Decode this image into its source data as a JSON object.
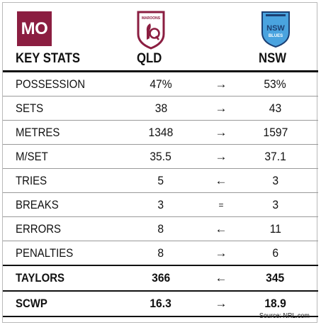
{
  "badge": "MO",
  "header": {
    "key_label": "KEY STATS",
    "team_left": "QLD",
    "team_right": "NSW"
  },
  "logos": {
    "qld_text": "MAROONS",
    "nsw_line1": "NSW",
    "nsw_line2": "BLUES"
  },
  "rows": [
    {
      "label": "POSSESSION",
      "qld": "47%",
      "arrow": "→",
      "nsw": "53%"
    },
    {
      "label": "SETS",
      "qld": "38",
      "arrow": "→",
      "nsw": "43"
    },
    {
      "label": "METRES",
      "qld": "1348",
      "arrow": "→",
      "nsw": "1597"
    },
    {
      "label": "M/SET",
      "qld": "35.5",
      "arrow": "→",
      "nsw": "37.1"
    },
    {
      "label": "TRIES",
      "qld": "5",
      "arrow": "←",
      "nsw": "3"
    },
    {
      "label": "BREAKS",
      "qld": "3",
      "arrow": "=",
      "nsw": "3"
    },
    {
      "label": "ERRORS",
      "qld": "8",
      "arrow": "←",
      "nsw": "11"
    },
    {
      "label": "PENALTIES",
      "qld": "8",
      "arrow": "→",
      "nsw": "6"
    },
    {
      "label": "TAYLORS",
      "qld": "366",
      "arrow": "←",
      "nsw": "345"
    },
    {
      "label": "SCWP",
      "qld": "16.3",
      "arrow": "→",
      "nsw": "18.9"
    }
  ],
  "source": "Source: NRL.com",
  "colors": {
    "qld_maroon": "#8b1e41",
    "nsw_blue": "#4aa3df",
    "nsw_navy": "#1b3f73"
  }
}
